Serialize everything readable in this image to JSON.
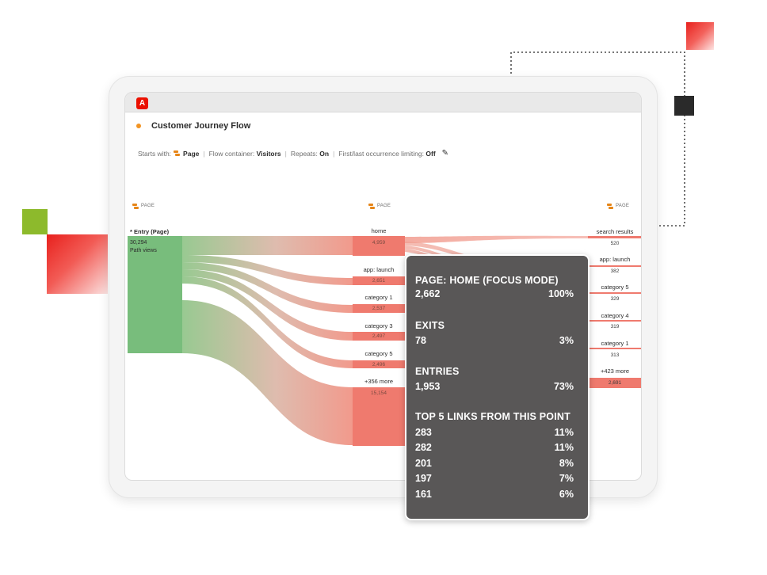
{
  "app": {
    "logo_letter": "A",
    "panel_title": "Customer Journey Flow"
  },
  "settings": {
    "starts_with_label": "Starts with:",
    "starts_with_value": "Page",
    "flow_container_label": "Flow container:",
    "flow_container_value": "Visitors",
    "repeats_label": "Repeats:",
    "repeats_value": "On",
    "occurrence_label": "First/last occurrence limiting:",
    "occurrence_value": "Off"
  },
  "columns": [
    {
      "header": "PAGE"
    },
    {
      "header": "PAGE"
    },
    {
      "header": "PAGE"
    }
  ],
  "entry": {
    "label": "* Entry (Page)",
    "value": "30,294",
    "unit": "Path views"
  },
  "middle_nodes": [
    {
      "label": "home",
      "value": "4,959"
    },
    {
      "label": "app: launch",
      "value": "2,651"
    },
    {
      "label": "category 1",
      "value": "2,537"
    },
    {
      "label": "category 3",
      "value": "2,497"
    },
    {
      "label": "category 5",
      "value": "2,496"
    },
    {
      "label": "+356 more",
      "value": "15,154"
    }
  ],
  "right_nodes": [
    {
      "label": "search results",
      "value": "520"
    },
    {
      "label": "app: launch",
      "value": "382"
    },
    {
      "label": "category 5",
      "value": "329"
    },
    {
      "label": "category 4",
      "value": "319"
    },
    {
      "label": "category 1",
      "value": "313"
    },
    {
      "label": "+423 more",
      "value": "2,691"
    }
  ],
  "tooltip": {
    "title": "PAGE: HOME (FOCUS MODE)",
    "title_count": "2,662",
    "title_pct": "100%",
    "exits_label": "EXITS",
    "exits_count": "78",
    "exits_pct": "3%",
    "entries_label": "ENTRIES",
    "entries_count": "1,953",
    "entries_pct": "73%",
    "links_label": "TOP 5 LINKS FROM THIS POINT",
    "links": [
      {
        "count": "283",
        "pct": "11%"
      },
      {
        "count": "282",
        "pct": "11%"
      },
      {
        "count": "201",
        "pct": "8%"
      },
      {
        "count": "197",
        "pct": "7%"
      },
      {
        "count": "161",
        "pct": "6%"
      }
    ]
  },
  "colors": {
    "entry_node": "#78bd7c",
    "node": "#ef7a6e",
    "accent_red": "#eb1000",
    "tooltip_bg": "#595757",
    "title_dot": "#f29423"
  }
}
